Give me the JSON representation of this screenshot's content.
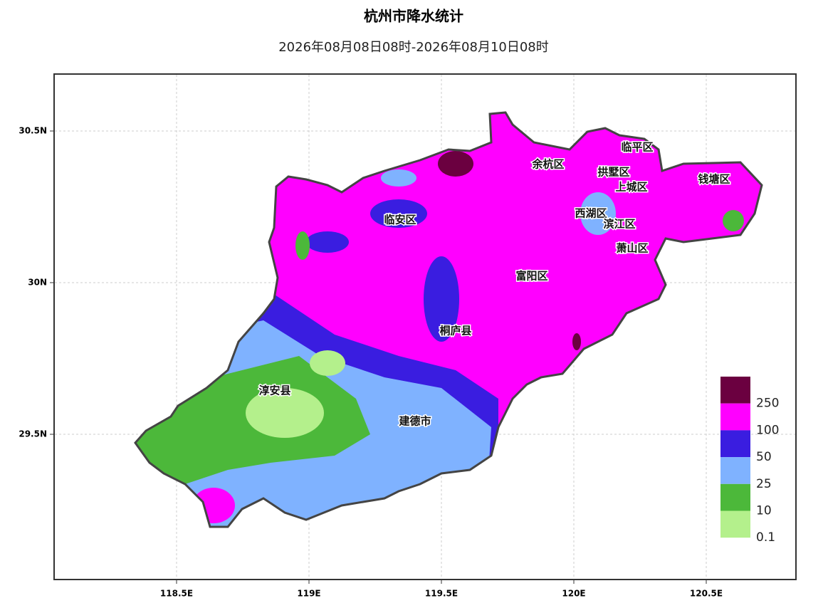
{
  "title": "杭州市降水统计",
  "subtitle": "2026年08月08日08时-2026年08月10日08时",
  "xticks": [
    {
      "value": 118.5,
      "label": "118.5E"
    },
    {
      "value": 119,
      "label": "119E"
    },
    {
      "value": 119.5,
      "label": "119.5E"
    },
    {
      "value": 120,
      "label": "120E"
    },
    {
      "value": 120.5,
      "label": "120.5E"
    }
  ],
  "yticks": [
    {
      "value": 29.5,
      "label": "29.5N"
    },
    {
      "value": 30,
      "label": "30N"
    },
    {
      "value": 30.5,
      "label": "30.5N"
    }
  ],
  "districts": [
    "临平区",
    "余杭区",
    "拱墅区",
    "上城区",
    "钱塘区",
    "临安区",
    "西湖区",
    "滨江区",
    "萧山区",
    "富阳区",
    "桐庐县",
    "淳安县",
    "建德市"
  ],
  "legend": {
    "levels": [
      250,
      100,
      50,
      25,
      10,
      0.1
    ],
    "colors": [
      "#6b0040",
      "#ff00ff",
      "#3a1de0",
      "#7fb2ff",
      "#4cb83a",
      "#b4f08c"
    ]
  }
}
